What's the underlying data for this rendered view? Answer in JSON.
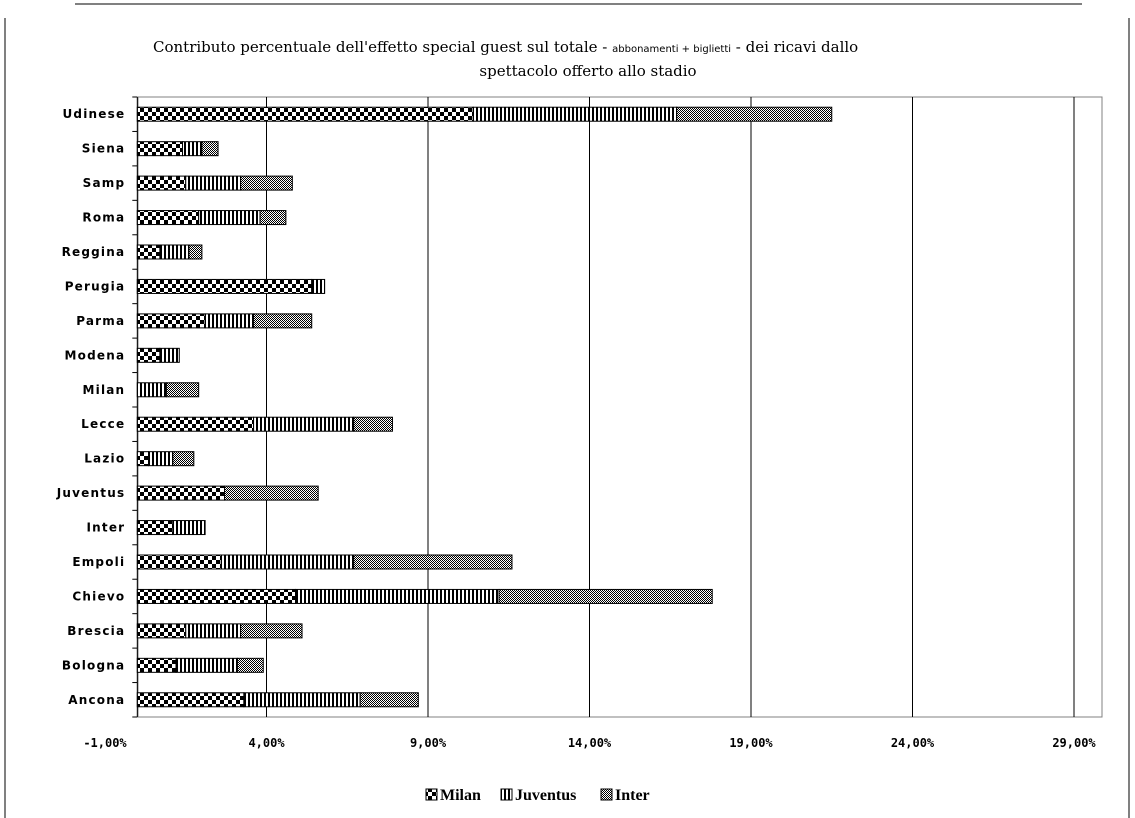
{
  "chart_data": {
    "type": "bar",
    "orientation": "horizontal",
    "stacked": true,
    "title_parts": [
      "Contributo percentuale dell'effetto special guest sul totale - ",
      "abbonamenti + biglietti",
      " - dei ricavi dallo",
      "spettacolo offerto allo stadio"
    ],
    "categories": [
      "Udinese",
      "Siena",
      "Samp",
      "Roma",
      "Reggina",
      "Perugia",
      "Parma",
      "Modena",
      "Milan",
      "Lecce",
      "Lazio",
      "Juventus",
      "Inter",
      "Empoli",
      "Chievo",
      "Brescia",
      "Bologna",
      "Ancona"
    ],
    "series": [
      {
        "name": "Milan",
        "pattern": "checker",
        "values": [
          10.4,
          1.4,
          1.5,
          1.9,
          0.7,
          5.4,
          2.1,
          0.7,
          0.0,
          3.6,
          0.35,
          2.7,
          1.1,
          2.6,
          4.9,
          1.5,
          1.2,
          3.3
        ]
      },
      {
        "name": "Juventus",
        "pattern": "vstripe",
        "values": [
          6.3,
          0.6,
          1.7,
          1.9,
          0.9,
          0.4,
          1.5,
          0.6,
          0.9,
          3.1,
          0.75,
          0.0,
          1.0,
          4.1,
          6.3,
          1.7,
          1.9,
          3.6
        ]
      },
      {
        "name": "Inter",
        "pattern": "crosshatch",
        "values": [
          4.8,
          0.5,
          1.6,
          0.8,
          0.4,
          0.0,
          1.8,
          0.0,
          1.0,
          1.2,
          0.65,
          2.9,
          0.0,
          4.9,
          6.6,
          1.9,
          0.8,
          1.8
        ]
      }
    ],
    "x_ticks": [
      "-1,00%",
      "4,00%",
      "9,00%",
      "14,00%",
      "19,00%",
      "24,00%",
      "29,00%"
    ],
    "xlim": [
      -1,
      30
    ],
    "grid": "vertical major lines",
    "legend_position": "bottom"
  }
}
